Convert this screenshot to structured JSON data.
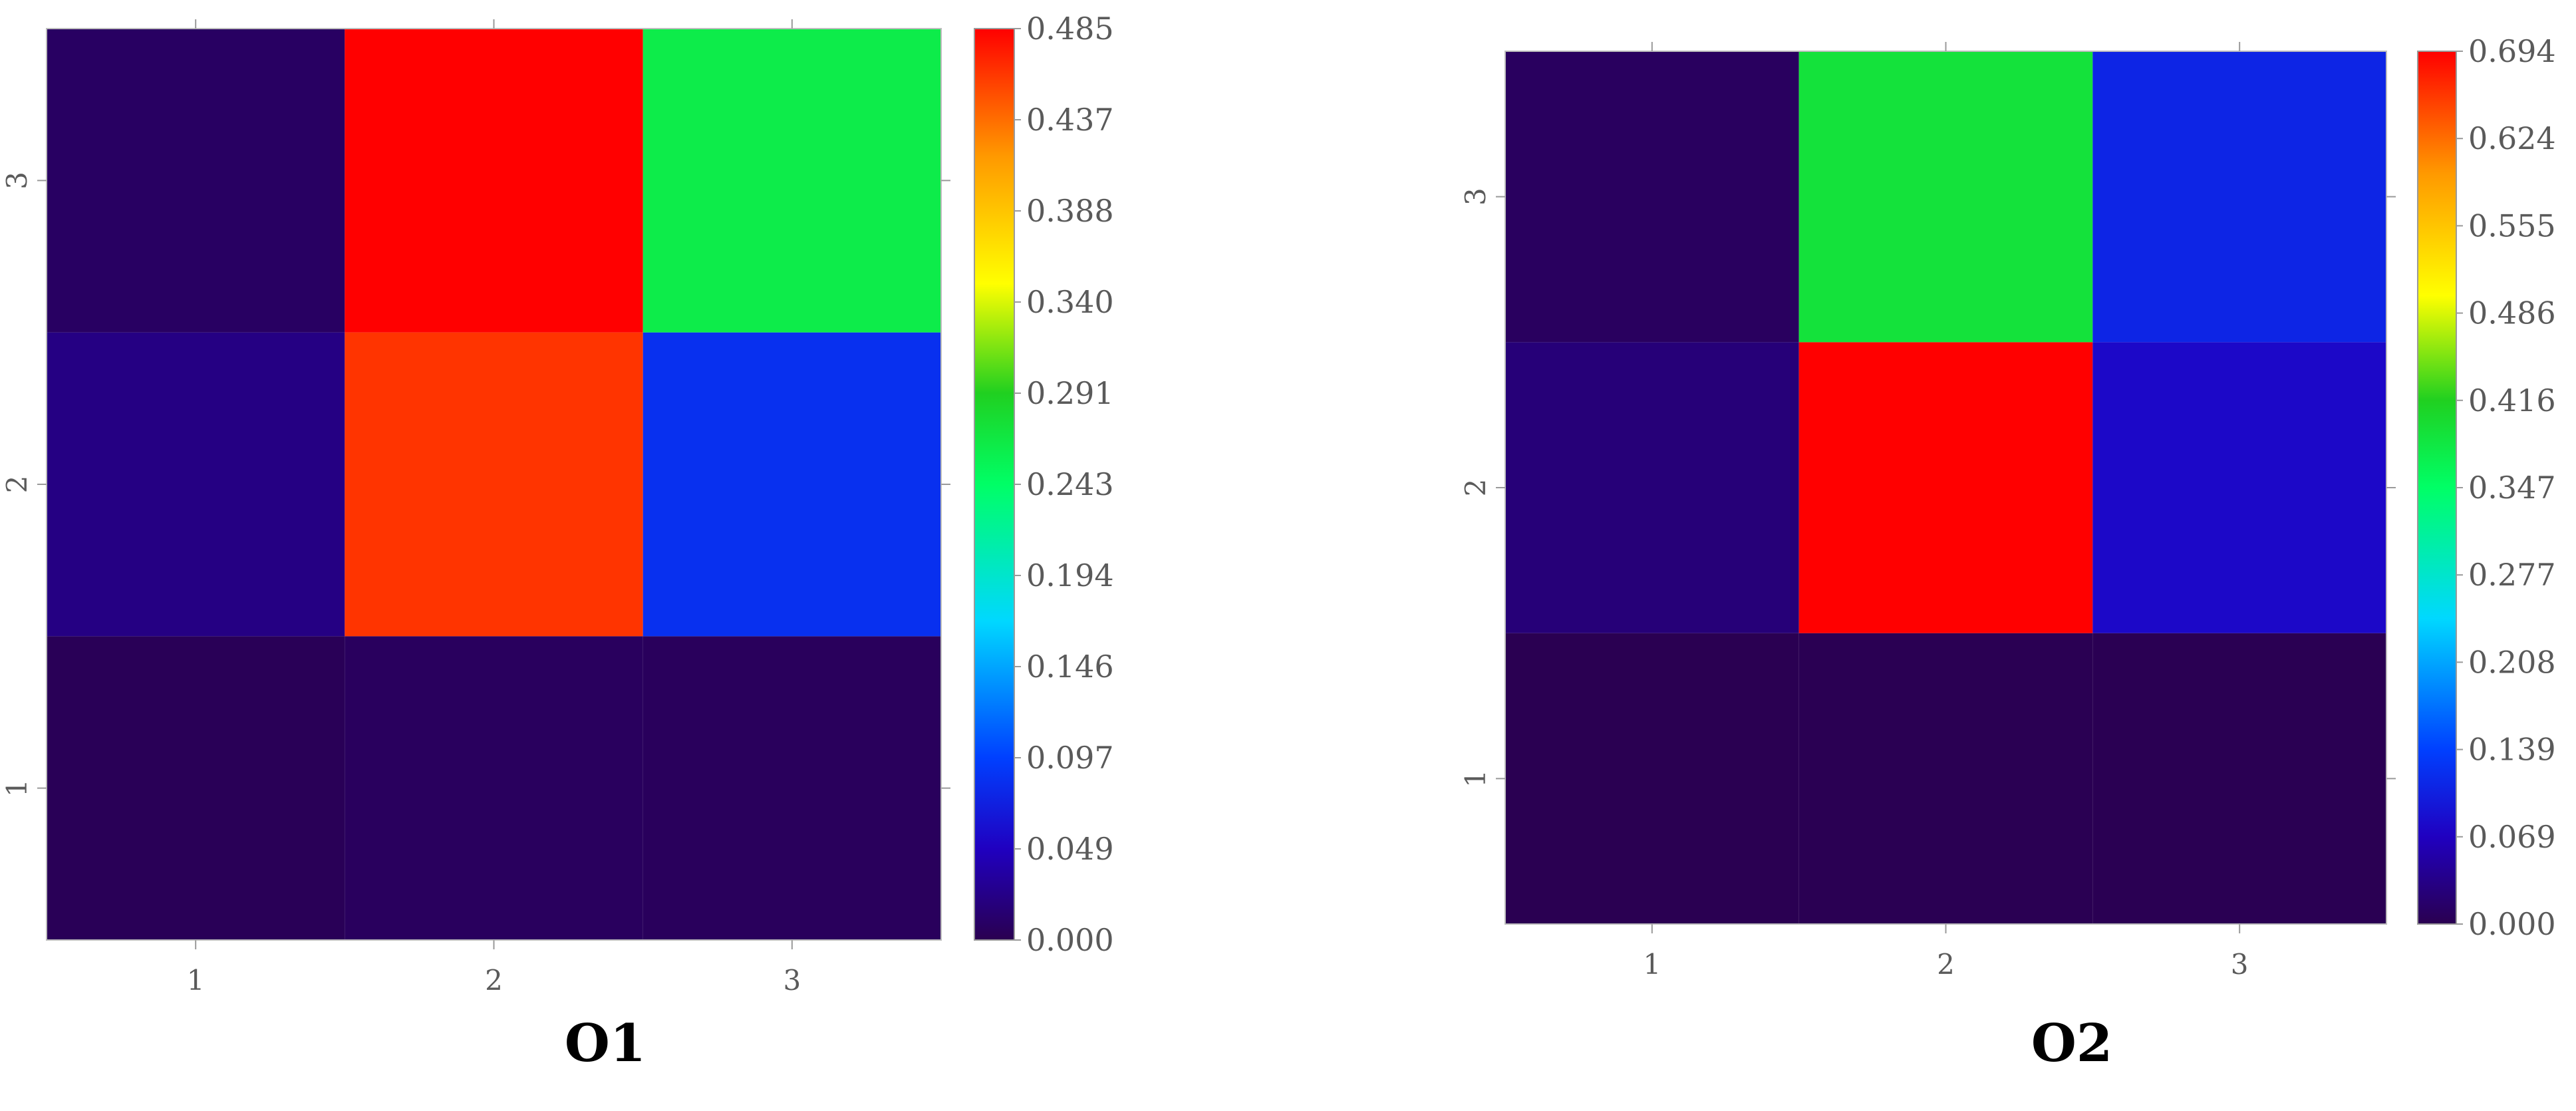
{
  "chart_data": [
    {
      "type": "heatmap",
      "title": "O1",
      "x_ticks": [
        "1",
        "2",
        "3"
      ],
      "y_ticks": [
        "1",
        "2",
        "3"
      ],
      "xlim": [
        0.5,
        3.5
      ],
      "ylim": [
        0.5,
        3.5
      ],
      "colorbar": {
        "colormap": "jet",
        "range": [
          0.0,
          0.485
        ],
        "tick_labels": [
          "0.000",
          "0.049",
          "0.097",
          "0.146",
          "0.194",
          "0.243",
          "0.291",
          "0.340",
          "0.388",
          "0.437",
          "0.485"
        ]
      },
      "cells": [
        {
          "x": 1,
          "y": 1,
          "value": 0.003
        },
        {
          "x": 2,
          "y": 1,
          "value": 0.006
        },
        {
          "x": 3,
          "y": 1,
          "value": 0.005
        },
        {
          "x": 1,
          "y": 2,
          "value": 0.022
        },
        {
          "x": 2,
          "y": 2,
          "value": 0.462
        },
        {
          "x": 3,
          "y": 2,
          "value": 0.085
        },
        {
          "x": 1,
          "y": 3,
          "value": 0.008
        },
        {
          "x": 2,
          "y": 3,
          "value": 0.485
        },
        {
          "x": 3,
          "y": 3,
          "value": 0.262
        }
      ]
    },
    {
      "type": "heatmap",
      "title": "O2",
      "x_ticks": [
        "1",
        "2",
        "3"
      ],
      "y_ticks": [
        "1",
        "2",
        "3"
      ],
      "xlim": [
        0.5,
        3.5
      ],
      "ylim": [
        0.5,
        3.5
      ],
      "colorbar": {
        "colormap": "jet",
        "range": [
          0.0,
          0.694
        ],
        "tick_labels": [
          "0.000",
          "0.069",
          "0.139",
          "0.208",
          "0.277",
          "0.347",
          "0.416",
          "0.486",
          "0.555",
          "0.624",
          "0.694"
        ]
      },
      "cells": [
        {
          "x": 1,
          "y": 1,
          "value": 0.001
        },
        {
          "x": 2,
          "y": 1,
          "value": 0.002
        },
        {
          "x": 3,
          "y": 1,
          "value": 0.002
        },
        {
          "x": 1,
          "y": 2,
          "value": 0.025
        },
        {
          "x": 2,
          "y": 2,
          "value": 0.694
        },
        {
          "x": 3,
          "y": 2,
          "value": 0.078
        },
        {
          "x": 1,
          "y": 3,
          "value": 0.009
        },
        {
          "x": 2,
          "y": 3,
          "value": 0.39
        },
        {
          "x": 3,
          "y": 3,
          "value": 0.11
        }
      ]
    }
  ]
}
